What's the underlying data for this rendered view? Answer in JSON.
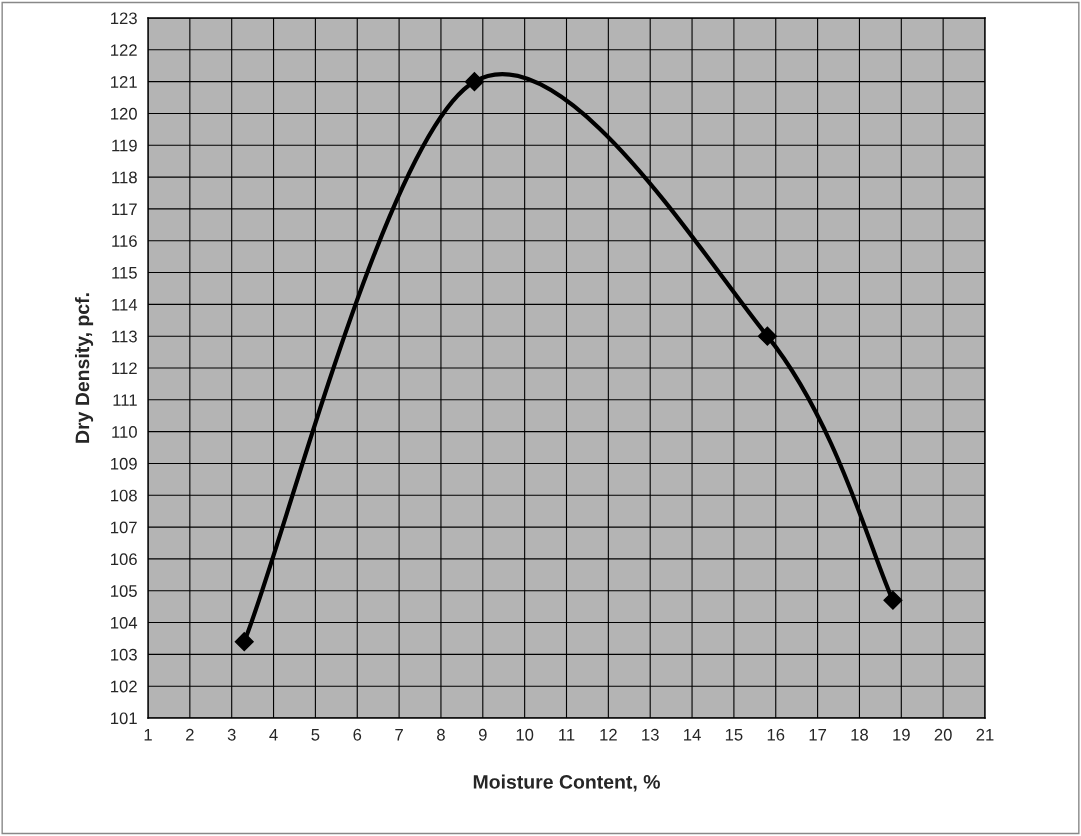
{
  "chart_data": {
    "type": "line",
    "xlabel": "Moisture Content, %",
    "ylabel": "Dry Density, pcf.",
    "x": [
      3.3,
      8.8,
      15.8,
      18.8
    ],
    "series": [
      {
        "color": "#000000",
        "values": [
          103.4,
          121.0,
          113.0,
          104.7
        ]
      }
    ],
    "marker": "diamond",
    "line_style": "solid",
    "xlim": [
      1,
      21
    ],
    "xticks": [
      1,
      2,
      3,
      4,
      5,
      6,
      7,
      8,
      9,
      10,
      11,
      12,
      13,
      14,
      15,
      16,
      17,
      18,
      19,
      20,
      21
    ],
    "ylim": [
      101,
      123
    ],
    "yticks": [
      101,
      102,
      103,
      104,
      105,
      106,
      107,
      108,
      109,
      110,
      111,
      112,
      113,
      114,
      115,
      116,
      117,
      118,
      119,
      120,
      121,
      122,
      123
    ],
    "grid": true
  }
}
